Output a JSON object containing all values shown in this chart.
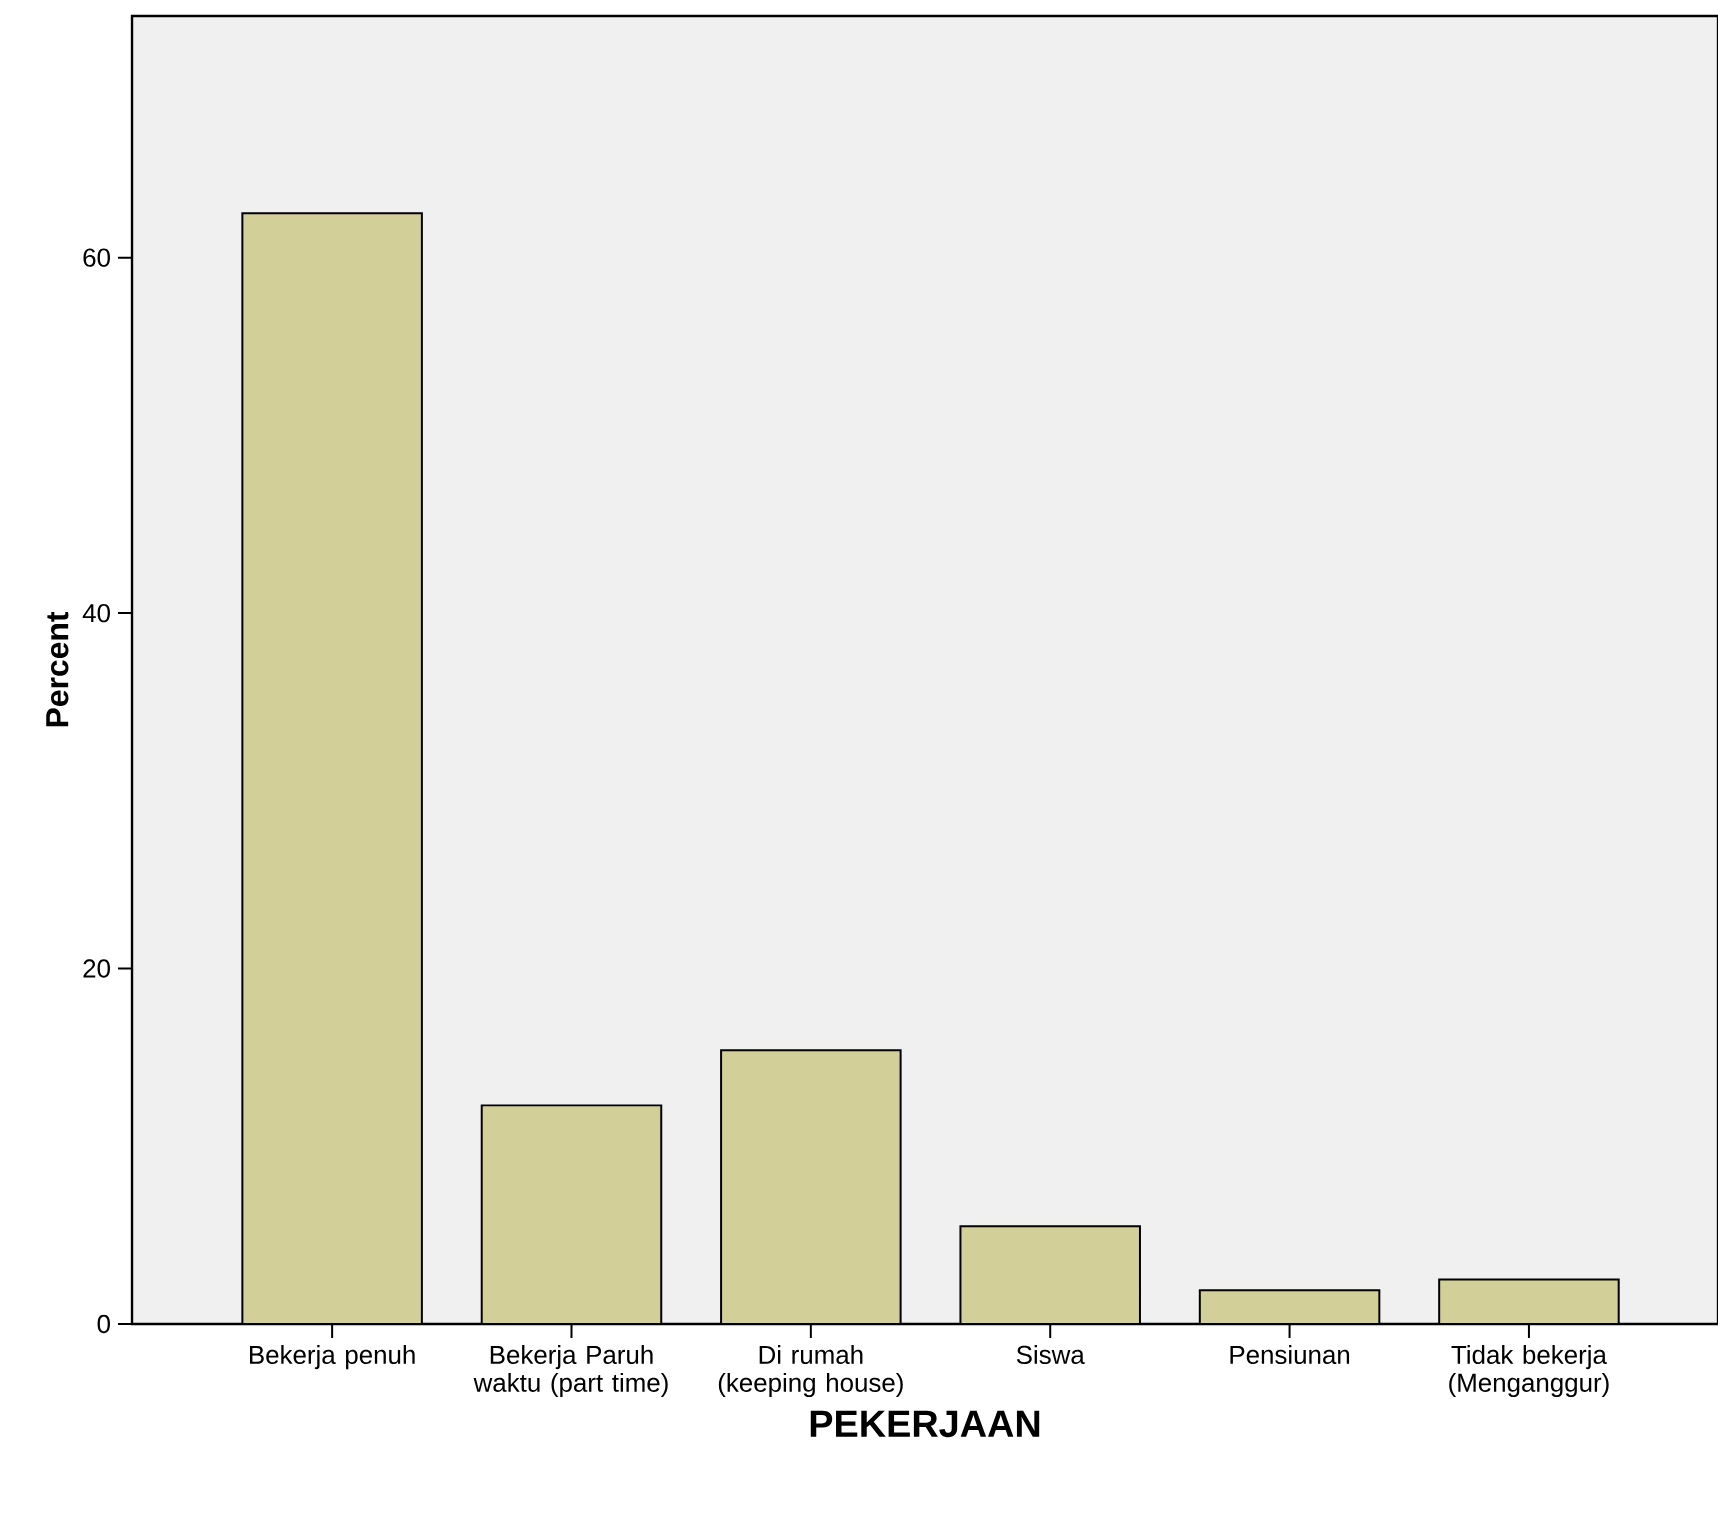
{
  "chart_data": {
    "type": "bar",
    "xlabel": "PEKERJAAN",
    "ylabel": "Percent",
    "categories": [
      "Bekerja penuh",
      "Bekerja Paruh waktu (part time)",
      "Di rumah (keeping house)",
      "Siswa",
      "Pensiunan",
      "Tidak bekerja (Menganggur)"
    ],
    "values": [
      62.5,
      12.3,
      15.4,
      5.5,
      1.9,
      2.5
    ],
    "color": "#d3cf98",
    "ylim": [
      0,
      73.6
    ],
    "yticks": [
      0,
      20,
      40,
      60
    ],
    "grid": false
  }
}
